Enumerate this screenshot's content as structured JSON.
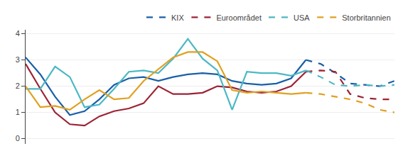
{
  "chart_data": {
    "type": "line",
    "categories": [
      null,
      null,
      null,
      null,
      null,
      null,
      null,
      null,
      null,
      null,
      null,
      null,
      null,
      null,
      null,
      null,
      null,
      null,
      null,
      null,
      null,
      null,
      null,
      null,
      null,
      null
    ],
    "series": [
      {
        "name": "KIX",
        "color": "#1a5fa8",
        "line_style": "solid",
        "values": [
          3.1,
          2.45,
          1.6,
          0.9,
          1.05,
          1.5,
          2.05,
          2.3,
          2.35,
          2.2,
          2.35,
          2.45,
          2.5,
          2.45,
          2.2,
          2.1,
          2.05,
          2.1,
          2.3,
          3.0,
          null,
          null,
          null,
          null,
          null,
          null
        ]
      },
      {
        "name": "KIX",
        "color": "#1a5fa8",
        "line_style": "dashed",
        "values": [
          null,
          null,
          null,
          null,
          null,
          null,
          null,
          null,
          null,
          null,
          null,
          null,
          null,
          null,
          null,
          null,
          null,
          null,
          null,
          3.0,
          2.85,
          2.5,
          2.1,
          2.05,
          2.0,
          2.2
        ]
      },
      {
        "name": "Euroområdet",
        "color": "#9b2335",
        "line_style": "solid",
        "values": [
          2.85,
          1.9,
          1.0,
          0.55,
          0.5,
          0.85,
          1.05,
          1.15,
          1.35,
          2.0,
          1.7,
          1.7,
          1.75,
          2.0,
          1.95,
          1.8,
          1.75,
          1.8,
          2.0,
          2.55,
          null,
          null,
          null,
          null,
          null,
          null
        ]
      },
      {
        "name": "Euroområdet",
        "color": "#9b2335",
        "line_style": "dashed",
        "values": [
          null,
          null,
          null,
          null,
          null,
          null,
          null,
          null,
          null,
          null,
          null,
          null,
          null,
          null,
          null,
          null,
          null,
          null,
          null,
          2.55,
          2.6,
          2.55,
          1.7,
          1.55,
          1.5,
          1.5
        ]
      },
      {
        "name": "USA",
        "color": "#4cb8c4",
        "line_style": "solid",
        "values": [
          1.9,
          1.9,
          2.75,
          2.35,
          1.2,
          1.3,
          1.9,
          2.55,
          2.6,
          2.5,
          3.05,
          3.8,
          3.05,
          2.6,
          1.1,
          2.55,
          2.5,
          2.5,
          2.4,
          2.6,
          null,
          null,
          null,
          null,
          null,
          null
        ]
      },
      {
        "name": "USA",
        "color": "#4cb8c4",
        "line_style": "dashed",
        "values": [
          null,
          null,
          null,
          null,
          null,
          null,
          null,
          null,
          null,
          null,
          null,
          null,
          null,
          null,
          null,
          null,
          null,
          null,
          null,
          2.6,
          2.35,
          2.05,
          2.0,
          2.05,
          2.0,
          2.05
        ]
      },
      {
        "name": "Storbritannien",
        "color": "#e0a020",
        "line_style": "solid",
        "values": [
          2.0,
          1.2,
          1.25,
          1.1,
          1.5,
          1.85,
          1.5,
          1.55,
          2.2,
          2.65,
          3.1,
          3.3,
          3.3,
          2.95,
          1.85,
          1.75,
          1.8,
          1.75,
          1.7,
          1.75,
          null,
          null,
          null,
          null,
          null,
          null
        ]
      },
      {
        "name": "Storbritannien",
        "color": "#e0a020",
        "line_style": "dashed",
        "values": [
          null,
          null,
          null,
          null,
          null,
          null,
          null,
          null,
          null,
          null,
          null,
          null,
          null,
          null,
          null,
          null,
          null,
          null,
          null,
          1.75,
          1.7,
          1.6,
          1.5,
          1.35,
          1.1,
          1.0
        ]
      }
    ],
    "ylim": [
      -0.2,
      4.15
    ],
    "yticks": [
      0,
      1,
      2,
      3,
      4
    ],
    "y2lim": [
      -0.2,
      4.15
    ],
    "y2ticks": [
      0,
      1,
      2,
      3,
      4
    ],
    "grid": true,
    "legend": "upper right",
    "tick_labels": "y"
  }
}
